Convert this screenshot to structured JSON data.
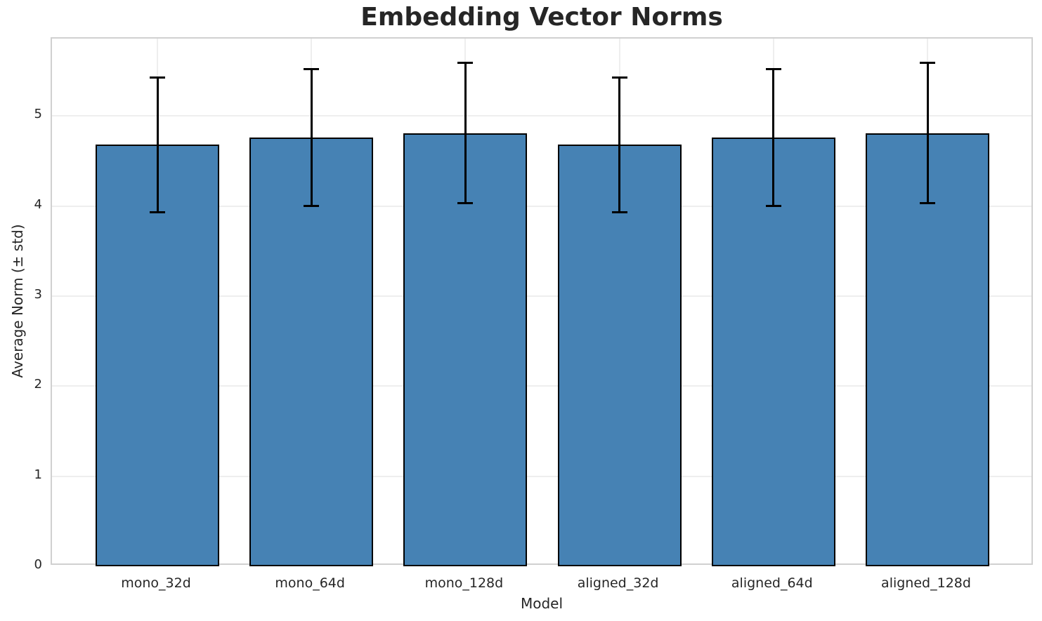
{
  "chart_data": {
    "type": "bar",
    "title": "Embedding Vector Norms",
    "xlabel": "Model",
    "ylabel": "Average Norm (± std)",
    "categories": [
      "mono_32d",
      "mono_64d",
      "mono_128d",
      "aligned_32d",
      "aligned_64d",
      "aligned_128d"
    ],
    "values": [
      4.68,
      4.76,
      4.81,
      4.68,
      4.76,
      4.81
    ],
    "errors": [
      0.75,
      0.76,
      0.78,
      0.75,
      0.76,
      0.78
    ],
    "ylim": [
      0,
      5.86
    ],
    "yticks": [
      0,
      1,
      2,
      3,
      4,
      5
    ],
    "grid": true,
    "legend": "none",
    "bar_color": "#4682B4",
    "bar_edge_color": "#000000",
    "error_color": "#000000",
    "grid_color": "#eeeeee",
    "spine_color": "#d0d0d0",
    "text_color": "#262626"
  }
}
